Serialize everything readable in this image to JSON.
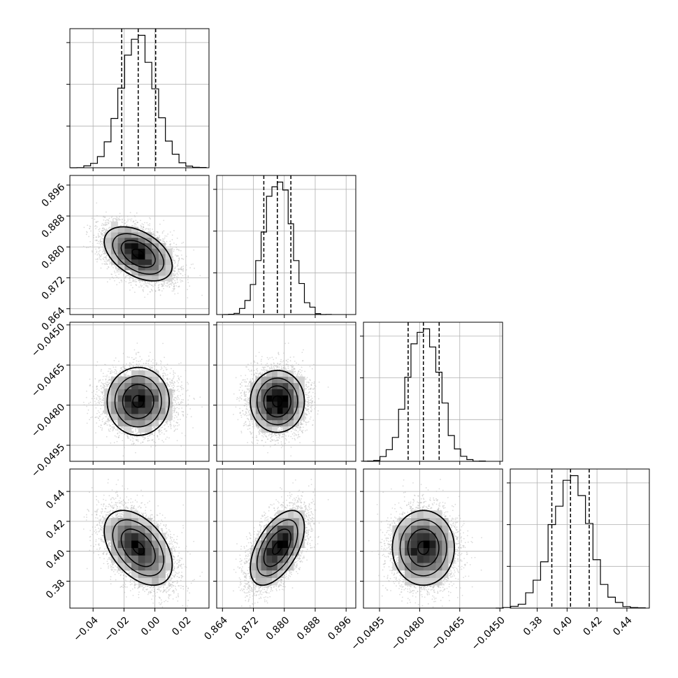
{
  "chart_data": {
    "type": "corner",
    "title": "",
    "parameters": [
      {
        "name": "",
        "range": [
          -0.055,
          0.035
        ],
        "ticks": [
          -0.04,
          -0.02,
          0.0,
          0.02
        ],
        "tick_labels": [
          "−0.04",
          "−0.02",
          "0.00",
          "0.02"
        ],
        "quantiles": [
          -0.0215,
          -0.0108,
          0.0005
        ]
      },
      {
        "name": "",
        "range": [
          0.8625,
          0.8985
        ],
        "ticks": [
          0.864,
          0.872,
          0.88,
          0.888,
          0.896
        ],
        "tick_labels": [
          "0.864",
          "0.872",
          "0.880",
          "0.888",
          "0.896"
        ],
        "quantiles": [
          0.8747,
          0.8782,
          0.8817
        ]
      },
      {
        "name": "",
        "range": [
          -0.0501,
          -0.0449
        ],
        "ticks": [
          -0.0495,
          -0.048,
          -0.0465,
          -0.045
        ],
        "tick_labels": [
          "−0.0495",
          "−0.0480",
          "−0.0465",
          "−0.0450"
        ],
        "quantiles": [
          -0.04843,
          -0.04786,
          -0.04727
        ]
      },
      {
        "name": "",
        "range": [
          0.362,
          0.455
        ],
        "ticks": [
          0.38,
          0.4,
          0.42,
          0.44
        ],
        "tick_labels": [
          "0.38",
          "0.40",
          "0.42",
          "0.44"
        ],
        "quantiles": [
          0.3898,
          0.4023,
          0.4148
        ]
      }
    ],
    "correlations": [
      [
        1,
        -0.45,
        0.0,
        -0.45
      ],
      [
        -0.45,
        1,
        0.0,
        0.55
      ],
      [
        0.0,
        0.0,
        1,
        0.0
      ],
      [
        -0.45,
        0.55,
        0.0,
        1
      ]
    ],
    "diagonal": "1D marginal histograms with dashed vertical lines at the 16th, 50th and 84th percentiles",
    "off_diagonal": "2D histogram (greyscale) with density contours and scattered samples",
    "grid": true,
    "colors": {
      "line": "#000000",
      "grid": "#b0b0b0",
      "points": "#bdbdbd"
    }
  }
}
